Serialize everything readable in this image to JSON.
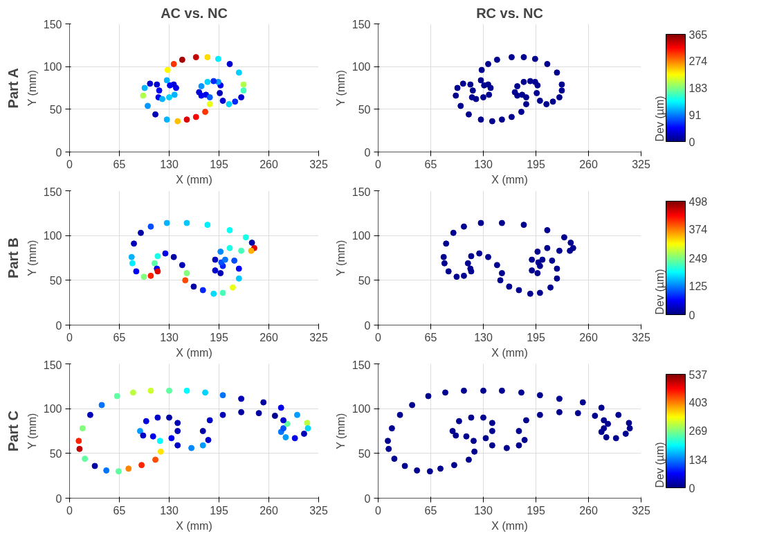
{
  "chart_data": [
    {
      "type": "scatter",
      "title": "AC vs. NC",
      "annotations": [
        "Part A"
      ],
      "xlabel": "X (mm)",
      "ylabel": "Y (mm)",
      "xlim": [
        0,
        325
      ],
      "ylim": [
        0,
        150
      ],
      "xticks": [
        0,
        65,
        130,
        195,
        260,
        325
      ],
      "yticks": [
        0,
        50,
        100,
        150
      ],
      "grid": true,
      "marker": "circle",
      "clim": [
        0,
        365
      ],
      "clabel": "Dev (µm)",
      "cticks": [
        0,
        91,
        183,
        274,
        365
      ],
      "x": [
        128,
        136,
        147,
        165,
        180,
        194,
        209,
        221,
        227,
        227,
        224,
        216,
        208,
        200,
        196,
        197,
        194,
        188,
        180,
        172,
        169,
        172,
        178,
        183,
        183,
        177,
        165,
        153,
        141,
        127,
        112,
        102,
        96,
        98,
        105,
        114,
        117,
        116,
        121,
        130,
        137,
        139,
        136,
        131,
        127
      ],
      "values": [
        96,
        103,
        108,
        111,
        111,
        109,
        103,
        93,
        79,
        72,
        64,
        59,
        56,
        60,
        69,
        78,
        82,
        83,
        82,
        77,
        70,
        66,
        67,
        64,
        56,
        47,
        41,
        38,
        36,
        38,
        44,
        54,
        66,
        75,
        80,
        79,
        72,
        64,
        62,
        64,
        67,
        75,
        79,
        78,
        84
      ],
      "cvalues": [
        230,
        300,
        350,
        340,
        240,
        130,
        30,
        120,
        200,
        160,
        30,
        60,
        120,
        30,
        20,
        40,
        100,
        60,
        120,
        100,
        30,
        40,
        40,
        80,
        220,
        300,
        320,
        330,
        250,
        110,
        20,
        100,
        200,
        110,
        30,
        30,
        40,
        40,
        110,
        120,
        110,
        40,
        30,
        40,
        110
      ]
    },
    {
      "type": "scatter",
      "title": "RC vs. NC",
      "xlabel": "X (mm)",
      "ylabel": "Y (mm)",
      "xlim": [
        0,
        325
      ],
      "ylim": [
        0,
        150
      ],
      "xticks": [
        0,
        65,
        130,
        195,
        260,
        325
      ],
      "yticks": [
        0,
        50,
        100,
        150
      ],
      "grid": true,
      "marker": "circle",
      "color": "#000090",
      "x": [
        128,
        136,
        147,
        165,
        180,
        194,
        209,
        221,
        227,
        227,
        224,
        216,
        208,
        200,
        196,
        197,
        194,
        188,
        180,
        172,
        169,
        172,
        178,
        183,
        183,
        177,
        165,
        153,
        141,
        127,
        112,
        102,
        96,
        98,
        105,
        114,
        117,
        116,
        121,
        130,
        137,
        139,
        136,
        131,
        127
      ],
      "values": [
        96,
        103,
        108,
        111,
        111,
        109,
        103,
        93,
        79,
        72,
        64,
        59,
        56,
        60,
        69,
        78,
        82,
        83,
        82,
        77,
        70,
        66,
        67,
        64,
        56,
        47,
        41,
        38,
        36,
        38,
        44,
        54,
        66,
        75,
        80,
        79,
        72,
        64,
        62,
        64,
        67,
        75,
        79,
        78,
        84
      ]
    },
    {
      "type": "scatter",
      "annotations": [
        "Part B"
      ],
      "xlabel": "X (mm)",
      "ylabel": "Y (mm)",
      "xlim": [
        0,
        325
      ],
      "ylim": [
        0,
        150
      ],
      "xticks": [
        0,
        65,
        130,
        195,
        260,
        325
      ],
      "yticks": [
        0,
        50,
        100,
        150
      ],
      "grid": true,
      "marker": "circle",
      "clim": [
        0,
        498
      ],
      "clabel": "Dev (µm)",
      "cticks": [
        0,
        125,
        249,
        374,
        498
      ],
      "x": [
        81,
        84,
        93,
        106,
        127,
        153,
        180,
        209,
        230,
        238,
        241,
        237,
        224,
        209,
        197,
        190,
        190,
        197,
        200,
        198,
        203,
        215,
        221,
        221,
        213,
        200,
        188,
        174,
        162,
        151,
        153,
        147,
        136,
        125,
        115,
        111,
        114,
        115,
        106,
        97,
        87,
        82
      ],
      "values": [
        76,
        91,
        103,
        110,
        114,
        114,
        112,
        106,
        98,
        92,
        86,
        83,
        83,
        86,
        82,
        73,
        61,
        58,
        66,
        70,
        73,
        72,
        63,
        52,
        42,
        36,
        35,
        39,
        43,
        50,
        58,
        67,
        76,
        80,
        77,
        69,
        63,
        60,
        55,
        54,
        60,
        69
      ],
      "cvalues": [
        150,
        30,
        20,
        100,
        150,
        160,
        180,
        190,
        200,
        20,
        450,
        350,
        220,
        200,
        130,
        30,
        40,
        30,
        80,
        100,
        120,
        100,
        60,
        160,
        300,
        220,
        170,
        80,
        20,
        400,
        250,
        30,
        20,
        50,
        200,
        230,
        60,
        450,
        420,
        250,
        60,
        180
      ]
    },
    {
      "type": "scatter",
      "xlabel": "X (mm)",
      "ylabel": "Y (mm)",
      "xlim": [
        0,
        325
      ],
      "ylim": [
        0,
        150
      ],
      "xticks": [
        0,
        65,
        130,
        195,
        260,
        325
      ],
      "yticks": [
        0,
        50,
        100,
        150
      ],
      "grid": true,
      "marker": "circle",
      "color": "#000090",
      "x": [
        81,
        84,
        93,
        106,
        127,
        153,
        180,
        209,
        230,
        238,
        241,
        237,
        224,
        209,
        197,
        190,
        190,
        197,
        200,
        198,
        203,
        215,
        221,
        221,
        213,
        200,
        188,
        174,
        162,
        151,
        153,
        147,
        136,
        125,
        115,
        111,
        114,
        115,
        106,
        97,
        87,
        82
      ],
      "values": [
        76,
        91,
        103,
        110,
        114,
        114,
        112,
        106,
        98,
        92,
        86,
        83,
        83,
        86,
        82,
        73,
        61,
        58,
        66,
        70,
        73,
        72,
        63,
        52,
        42,
        36,
        35,
        39,
        43,
        50,
        58,
        67,
        76,
        80,
        77,
        69,
        63,
        60,
        55,
        54,
        60,
        69
      ]
    },
    {
      "type": "scatter",
      "annotations": [
        "Part C"
      ],
      "xlabel": "X (mm)",
      "ylabel": "Y (mm)",
      "xlim": [
        0,
        325
      ],
      "ylim": [
        0,
        150
      ],
      "xticks": [
        0,
        65,
        130,
        195,
        260,
        325
      ],
      "yticks": [
        0,
        50,
        100,
        150
      ],
      "grid": true,
      "marker": "circle",
      "clim": [
        0,
        537
      ],
      "clabel": "Dev (µm)",
      "cticks": [
        0,
        134,
        269,
        403,
        537
      ],
      "x": [
        12,
        17,
        27,
        42,
        62,
        83,
        106,
        130,
        153,
        177,
        200,
        224,
        253,
        276,
        297,
        310,
        311,
        306,
        294,
        282,
        276,
        279,
        284,
        279,
        268,
        247,
        224,
        200,
        183,
        174,
        181,
        174,
        159,
        141,
        133,
        141,
        141,
        130,
        115,
        100,
        92,
        96,
        109,
        118,
        119,
        112,
        94,
        77,
        64,
        48,
        33,
        20,
        13
      ],
      "values": [
        64,
        78,
        93,
        104,
        114,
        118,
        120,
        120,
        120,
        118,
        115,
        111,
        107,
        101,
        93,
        84,
        78,
        72,
        67,
        68,
        74,
        78,
        83,
        87,
        92,
        95,
        96,
        93,
        87,
        75,
        65,
        59,
        56,
        59,
        67,
        75,
        84,
        90,
        90,
        86,
        75,
        70,
        69,
        64,
        52,
        43,
        37,
        33,
        30,
        31,
        36,
        44,
        55
      ],
      "cvalues": [
        450,
        270,
        30,
        130,
        250,
        300,
        310,
        250,
        200,
        180,
        130,
        30,
        20,
        60,
        150,
        300,
        180,
        30,
        60,
        150,
        130,
        110,
        250,
        40,
        10,
        20,
        20,
        30,
        40,
        20,
        40,
        150,
        140,
        40,
        60,
        30,
        30,
        20,
        40,
        50,
        150,
        40,
        60,
        200,
        350,
        430,
        450,
        400,
        250,
        130,
        20,
        250,
        500
      ]
    },
    {
      "type": "scatter",
      "xlabel": "X (mm)",
      "ylabel": "Y (mm)",
      "xlim": [
        0,
        325
      ],
      "ylim": [
        0,
        150
      ],
      "xticks": [
        0,
        65,
        130,
        195,
        260,
        325
      ],
      "yticks": [
        0,
        50,
        100,
        150
      ],
      "grid": true,
      "marker": "circle",
      "color": "#000090",
      "x": [
        12,
        17,
        27,
        42,
        62,
        83,
        106,
        130,
        153,
        177,
        200,
        224,
        253,
        276,
        297,
        310,
        311,
        306,
        294,
        282,
        276,
        279,
        284,
        279,
        268,
        247,
        224,
        200,
        183,
        174,
        181,
        174,
        159,
        141,
        133,
        141,
        141,
        130,
        115,
        100,
        92,
        96,
        109,
        118,
        119,
        112,
        94,
        77,
        64,
        48,
        33,
        20,
        13
      ],
      "values": [
        64,
        78,
        93,
        104,
        114,
        118,
        120,
        120,
        120,
        118,
        115,
        111,
        107,
        101,
        93,
        84,
        78,
        72,
        67,
        68,
        74,
        78,
        83,
        87,
        92,
        95,
        96,
        93,
        87,
        75,
        65,
        59,
        56,
        59,
        67,
        75,
        84,
        90,
        90,
        86,
        75,
        70,
        69,
        64,
        52,
        43,
        37,
        33,
        30,
        31,
        36,
        44,
        55
      ]
    }
  ]
}
